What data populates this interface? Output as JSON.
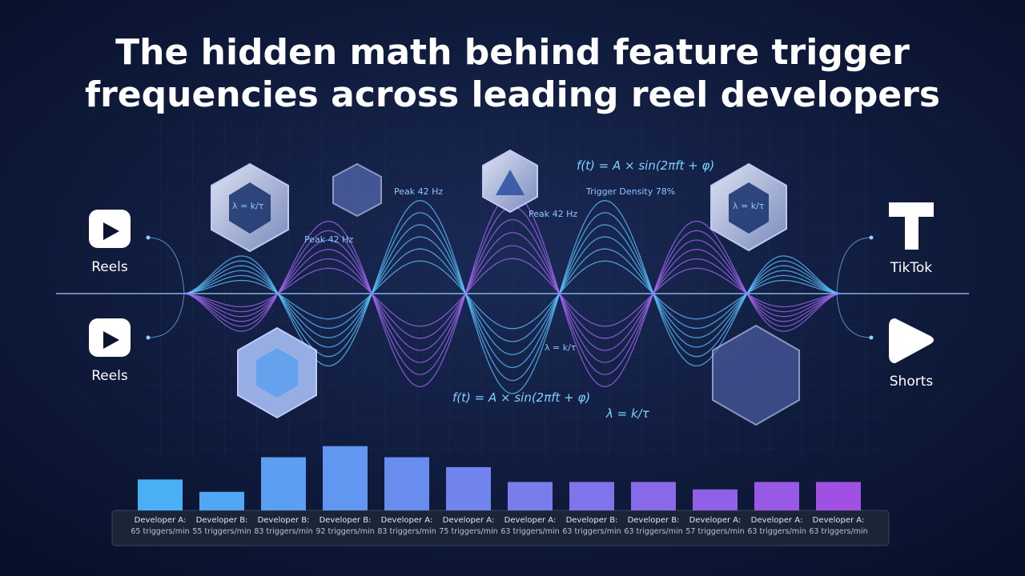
{
  "chart_data": {
    "type": "bar",
    "title": "The hidden math behind feature trigger frequencies across leading reel developers",
    "categories": [
      "Developer A:",
      "Developer B:",
      "Developer B:",
      "Developer B:",
      "Developer A:",
      "Developer A:",
      "Developer A:",
      "Developer B:",
      "Developer B:",
      "Developer A:",
      "Developer A:",
      "Developer A:"
    ],
    "values": [
      65,
      55,
      83,
      92,
      83,
      75,
      63,
      63,
      63,
      57,
      63,
      63
    ],
    "value_labels": [
      "65 triggers/min",
      "55 triggers/min",
      "83 triggers/min",
      "92 triggers/min",
      "83 triggers/min",
      "75 triggers/min",
      "63 triggers/min",
      "63 triggers/min",
      "63 triggers/min",
      "57 triggers/min",
      "63 triggers/min",
      "63 triggers/min"
    ],
    "ylim": [
      40,
      95
    ],
    "platforms": [
      "Reels",
      "Reels",
      "TikTok",
      "Shorts"
    ],
    "annotations": [
      "f(t) = A × sin(2πft + φ)",
      "f(t) = A × sin(2πft + φ)",
      "Peak 42 Hz",
      "Peak 42 Hz",
      "Peak 42 Hz",
      "Trigger Density 78%",
      "λ = k/τ",
      "λ = k/τ",
      "λ = k/τ",
      "λ = k/τ"
    ]
  }
}
